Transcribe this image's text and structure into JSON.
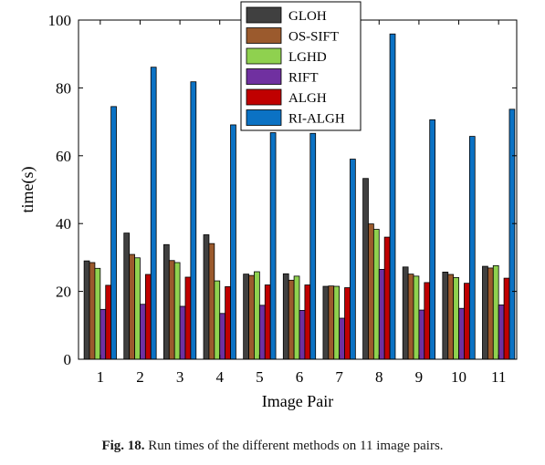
{
  "caption": {
    "prefix": "Fig. 18.",
    "text": " Run times of the different methods on 11 image pairs."
  },
  "chart_data": {
    "type": "bar",
    "xlabel": "Image Pair",
    "ylabel": "time(s)",
    "ylim": [
      0,
      100
    ],
    "yticks": [
      0,
      20,
      40,
      60,
      80,
      100
    ],
    "grid": false,
    "legend_position": "top",
    "categories": [
      "1",
      "2",
      "3",
      "4",
      "5",
      "6",
      "7",
      "8",
      "9",
      "10",
      "11"
    ],
    "series": [
      {
        "name": "GLOH",
        "color": "#404040",
        "values": [
          29.0,
          37.2,
          33.8,
          36.7,
          25.1,
          25.2,
          21.5,
          53.3,
          27.2,
          25.7,
          27.4
        ]
      },
      {
        "name": "OS-SIFT",
        "color": "#9b5a2d",
        "values": [
          28.5,
          30.9,
          29.1,
          34.1,
          24.7,
          23.3,
          21.6,
          39.9,
          25.1,
          25.0,
          26.9
        ]
      },
      {
        "name": "LGHD",
        "color": "#8fd14f",
        "values": [
          26.8,
          29.9,
          28.5,
          23.1,
          25.8,
          24.5,
          21.5,
          38.3,
          24.5,
          24.1,
          27.6
        ]
      },
      {
        "name": "RIFT",
        "color": "#7030a0",
        "values": [
          14.7,
          16.2,
          15.6,
          13.5,
          15.9,
          14.4,
          12.1,
          26.5,
          14.5,
          15.0,
          16.0
        ]
      },
      {
        "name": "ALGH",
        "color": "#c00000",
        "values": [
          21.8,
          25.0,
          24.2,
          21.4,
          21.9,
          21.9,
          21.1,
          36.0,
          22.6,
          22.4,
          23.9
        ]
      },
      {
        "name": "RI-ALGH",
        "color": "#0b72c4",
        "values": [
          74.5,
          86.1,
          81.8,
          69.1,
          66.8,
          66.6,
          59.0,
          95.9,
          70.6,
          65.7,
          73.7
        ]
      }
    ]
  }
}
